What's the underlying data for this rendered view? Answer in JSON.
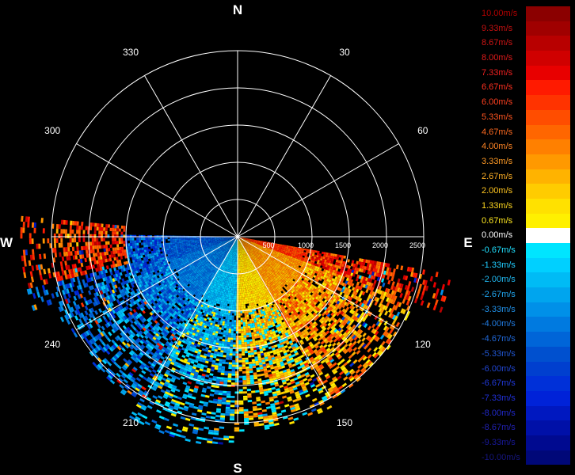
{
  "compass": {
    "north": "N",
    "south": "S",
    "east": "E",
    "west": "W"
  },
  "azimuth_labels": [
    "30",
    "60",
    "120",
    "150",
    "210",
    "240",
    "300",
    "330"
  ],
  "range_labels": [
    "500",
    "1000",
    "1500",
    "2000",
    "2500"
  ],
  "chart_data": {
    "type": "heatmap",
    "projection": "polar (PPI radar display)",
    "quantity": "radial velocity",
    "unit": "m/s",
    "azimuth_gridlines_deg": [
      0,
      30,
      60,
      90,
      120,
      150,
      180,
      210,
      240,
      270,
      300,
      330
    ],
    "range_rings": [
      500,
      1000,
      1500,
      2000,
      2500
    ],
    "color_range": [
      -10.0,
      10.0
    ],
    "data_sector_azimuth_deg": [
      100,
      285
    ],
    "approximate_field": [
      {
        "azimuth_sector": "90-110",
        "range": "0-2900",
        "velocity": 6.0
      },
      {
        "azimuth_sector": "110-150",
        "range": "0-2500",
        "velocity": 3.3
      },
      {
        "azimuth_sector": "150-180",
        "range": "0-2600",
        "velocity": 1.5
      },
      {
        "azimuth_sector": "180-210",
        "range": "0-2800",
        "velocity": -2.0
      },
      {
        "azimuth_sector": "210-250",
        "range": "0-2600",
        "velocity": -4.0
      },
      {
        "azimuth_sector": "250-270",
        "range": "0-2900",
        "velocity": -5.0
      },
      {
        "azimuth_sector": "255-275",
        "range": "1500-2900",
        "velocity": 6.0
      }
    ],
    "grid": true,
    "legend_placement": "right"
  },
  "legend": {
    "items": [
      {
        "label": "10.00m/s",
        "color": "#8b0000",
        "text_color": "#b00000"
      },
      {
        "label": "9.33m/s",
        "color": "#a00000",
        "text_color": "#c41010"
      },
      {
        "label": "8.67m/s",
        "color": "#b80000",
        "text_color": "#d01515"
      },
      {
        "label": "8.00m/s",
        "color": "#d00000",
        "text_color": "#e01a1a"
      },
      {
        "label": "7.33m/s",
        "color": "#e80000",
        "text_color": "#f02020"
      },
      {
        "label": "6.67m/s",
        "color": "#ff1a00",
        "text_color": "#ff3020"
      },
      {
        "label": "6.00m/s",
        "color": "#ff3300",
        "text_color": "#ff4020"
      },
      {
        "label": "5.33m/s",
        "color": "#ff4d00",
        "text_color": "#ff5520"
      },
      {
        "label": "4.67m/s",
        "color": "#ff6600",
        "text_color": "#ff6a20"
      },
      {
        "label": "4.00m/s",
        "color": "#ff8000",
        "text_color": "#ff8525"
      },
      {
        "label": "3.33m/s",
        "color": "#ff9900",
        "text_color": "#ff9a25"
      },
      {
        "label": "2.67m/s",
        "color": "#ffb300",
        "text_color": "#ffb025"
      },
      {
        "label": "2.00m/s",
        "color": "#ffcc00",
        "text_color": "#ffc520"
      },
      {
        "label": "1.33m/s",
        "color": "#ffe100",
        "text_color": "#ffd820"
      },
      {
        "label": "0.67m/s",
        "color": "#fff000",
        "text_color": "#ffe820"
      },
      {
        "label": "0.00m/s",
        "color": "#ffffff",
        "text_color": "#ffffff"
      },
      {
        "label": "-0.67m/s",
        "color": "#00e5ff",
        "text_color": "#20e0ff"
      },
      {
        "label": "-1.33m/s",
        "color": "#00d0ff",
        "text_color": "#20ccff"
      },
      {
        "label": "-2.00m/s",
        "color": "#00bbf5",
        "text_color": "#20b8f0"
      },
      {
        "label": "-2.67m/s",
        "color": "#00a5ee",
        "text_color": "#20a5ee"
      },
      {
        "label": "-3.33m/s",
        "color": "#0090e8",
        "text_color": "#2090e8"
      },
      {
        "label": "-4.00m/s",
        "color": "#007ae0",
        "text_color": "#207ae0"
      },
      {
        "label": "-4.67m/s",
        "color": "#0065d8",
        "text_color": "#2068d8"
      },
      {
        "label": "-5.33m/s",
        "color": "#0050cf",
        "text_color": "#2055d0"
      },
      {
        "label": "-6.00m/s",
        "color": "#003fcf",
        "text_color": "#2045d0"
      },
      {
        "label": "-6.67m/s",
        "color": "#0030d8",
        "text_color": "#2038d8"
      },
      {
        "label": "-7.33m/s",
        "color": "#0022d8",
        "text_color": "#2030d8"
      },
      {
        "label": "-8.00m/s",
        "color": "#0018c0",
        "text_color": "#2028c8"
      },
      {
        "label": "-8.67m/s",
        "color": "#0010a8",
        "text_color": "#2020b0"
      },
      {
        "label": "-9.33m/s",
        "color": "#000a90",
        "text_color": "#181898"
      },
      {
        "label": "-10.00m/s",
        "color": "#000878",
        "text_color": "#151580"
      }
    ]
  }
}
